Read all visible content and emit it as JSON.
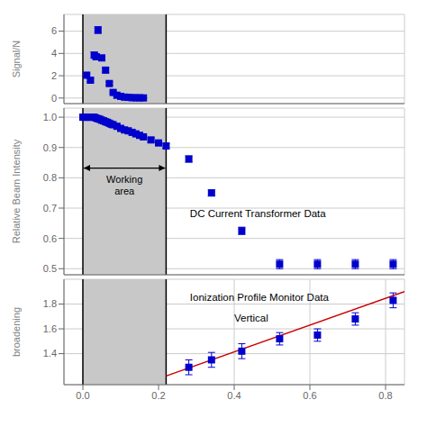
{
  "chart_data": [
    {
      "type": "scatter",
      "ylabel": "Signal/N",
      "xlim": [
        -0.05,
        0.85
      ],
      "ylim": [
        -0.5,
        7.5
      ],
      "xticks": [
        0,
        0.2,
        0.4,
        0.6,
        0.8
      ],
      "yticks": [
        0,
        2,
        4,
        6
      ],
      "grid": true,
      "tick_labels": "y",
      "shaded": {
        "x": [
          0.0,
          0.22
        ],
        "color": "#c8c8c8"
      },
      "vlines": [
        0.0,
        0.22
      ],
      "series": [
        {
          "type": "scatter",
          "color": "#0000cd",
          "marker": "square",
          "x": [
            0.01,
            0.02,
            0.03,
            0.035,
            0.04,
            0.05,
            0.06,
            0.07,
            0.08,
            0.09,
            0.1,
            0.11,
            0.12,
            0.13,
            0.14,
            0.15,
            0.16
          ],
          "values": [
            2.05,
            1.6,
            3.85,
            3.7,
            6.1,
            3.6,
            2.5,
            1.3,
            0.5,
            0.25,
            0.15,
            0.08,
            0.06,
            0.03,
            0.02,
            0.02,
            0.01
          ],
          "errors": [
            0.15,
            0.15,
            0.25,
            0.25,
            0.3,
            0.2,
            0.2,
            0.15,
            0.1,
            0.1,
            0.08,
            0.05,
            0.05,
            0.03,
            0.02,
            0.02,
            0.01
          ]
        }
      ]
    },
    {
      "type": "scatter",
      "ylabel": "Relative Beam Intensity",
      "xlim": [
        -0.05,
        0.85
      ],
      "ylim": [
        0.48,
        1.03
      ],
      "xticks": [
        0,
        0.2,
        0.4,
        0.6,
        0.8
      ],
      "yticks": [
        0.5,
        0.6,
        0.7,
        0.8,
        0.9,
        {
          "value": 1.0,
          "label": "1.0"
        }
      ],
      "grid": true,
      "tick_labels": "y",
      "shaded": {
        "x": [
          0.0,
          0.22
        ],
        "color": "#c8c8c8"
      },
      "vlines": [
        0.0,
        0.22
      ],
      "arrow_annotation": {
        "text": "Working\narea",
        "x": [
          0.0,
          0.22
        ]
      },
      "annotations": [
        {
          "text": "DC Current Transformer Data"
        }
      ],
      "series": [
        {
          "type": "scatter",
          "color": "#0000cd",
          "marker": "square",
          "x": [
            0.0,
            0.005,
            0.01,
            0.015,
            0.02,
            0.025,
            0.03,
            0.035,
            0.04,
            0.045,
            0.05,
            0.055,
            0.06,
            0.065,
            0.07,
            0.075,
            0.08,
            0.09,
            0.1,
            0.11,
            0.12,
            0.13,
            0.14,
            0.15,
            0.16,
            0.18,
            0.2,
            0.22,
            0.28,
            0.34,
            0.42,
            0.52,
            0.62,
            0.72,
            0.82
          ],
          "values": [
            1.0,
            1.0,
            1.0,
            1.0,
            1.0,
            1.0,
            1.0,
            0.997,
            0.995,
            0.993,
            0.99,
            0.988,
            0.985,
            0.983,
            0.98,
            0.977,
            0.975,
            0.97,
            0.963,
            0.958,
            0.955,
            0.95,
            0.945,
            0.94,
            0.935,
            0.925,
            0.915,
            0.905,
            0.862,
            0.75,
            0.625,
            0.515,
            0.515,
            0.515,
            0.515
          ],
          "errors": [
            0.005,
            0.005,
            0.005,
            0.005,
            0.005,
            0.005,
            0.005,
            0.005,
            0.005,
            0.005,
            0.005,
            0.005,
            0.005,
            0.005,
            0.005,
            0.005,
            0.005,
            0.005,
            0.005,
            0.005,
            0.005,
            0.005,
            0.005,
            0.005,
            0.005,
            0.007,
            0.007,
            0.008,
            0.01,
            0.01,
            0.012,
            0.015,
            0.015,
            0.015,
            0.015
          ]
        }
      ]
    },
    {
      "type": "scatter",
      "ylabel": "broadening",
      "xlim": [
        -0.05,
        0.85
      ],
      "ylim": [
        1.15,
        2.0
      ],
      "xticks": [
        {
          "value": 0.0,
          "label": "0.0"
        },
        0.2,
        0.4,
        0.6,
        0.8
      ],
      "yticks": [
        1.4,
        1.6,
        1.8
      ],
      "grid": true,
      "shaded": {
        "x": [
          0.0,
          0.22
        ],
        "color": "#c8c8c8"
      },
      "vlines": [
        0.0,
        0.22
      ],
      "annotations": [
        {
          "text": "Ionization Profile Monitor Data"
        },
        {
          "text": "Vertical"
        }
      ],
      "series": [
        {
          "type": "scatter",
          "color": "#0000cd",
          "marker": "square",
          "x": [
            0.28,
            0.34,
            0.42,
            0.52,
            0.62,
            0.72,
            0.82
          ],
          "values": [
            1.29,
            1.35,
            1.42,
            1.52,
            1.55,
            1.68,
            1.83
          ],
          "errors": [
            0.06,
            0.06,
            0.06,
            0.05,
            0.05,
            0.05,
            0.06
          ]
        },
        {
          "type": "line",
          "color": "#cc0000",
          "x": [
            0.22,
            0.85
          ],
          "values": [
            1.22,
            1.9
          ]
        }
      ]
    }
  ]
}
